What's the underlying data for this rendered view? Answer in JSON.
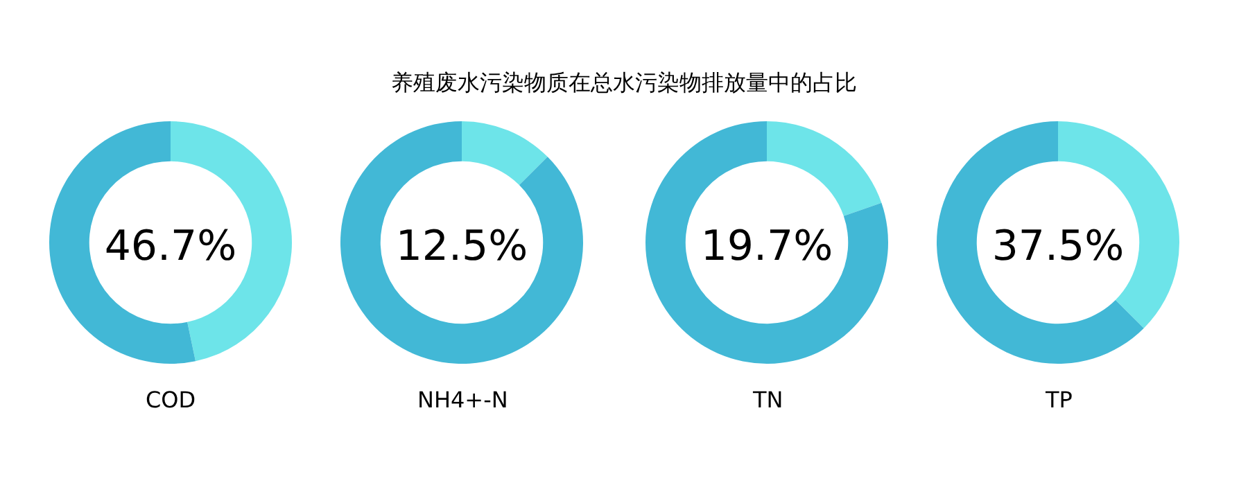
{
  "chart_data": [
    {
      "type": "donut",
      "title": "养殖废水污染物质在总水污染物排放量中的占比",
      "xlabel": "COD",
      "categories": [
        null,
        null
      ],
      "values": [
        46.7,
        53.3
      ],
      "colors": [
        "#6de4e9",
        "#42b8d6"
      ],
      "annotations": [
        "46.7%"
      ],
      "legend": false
    },
    {
      "type": "donut",
      "xlabel": "NH4+-N",
      "categories": [
        null,
        null
      ],
      "values": [
        12.5,
        87.5
      ],
      "colors": [
        "#6de4e9",
        "#42b8d6"
      ],
      "annotations": [
        "12.5%"
      ],
      "legend": false
    },
    {
      "type": "donut",
      "xlabel": "TN",
      "categories": [
        null,
        null
      ],
      "values": [
        19.7,
        80.3
      ],
      "colors": [
        "#6de4e9",
        "#42b8d6"
      ],
      "annotations": [
        "19.7%"
      ],
      "legend": false
    },
    {
      "type": "donut",
      "xlabel": "TP",
      "categories": [
        null,
        null
      ],
      "values": [
        37.5,
        62.5
      ],
      "colors": [
        "#6de4e9",
        "#42b8d6"
      ],
      "annotations": [
        "37.5%"
      ],
      "legend": false
    }
  ]
}
